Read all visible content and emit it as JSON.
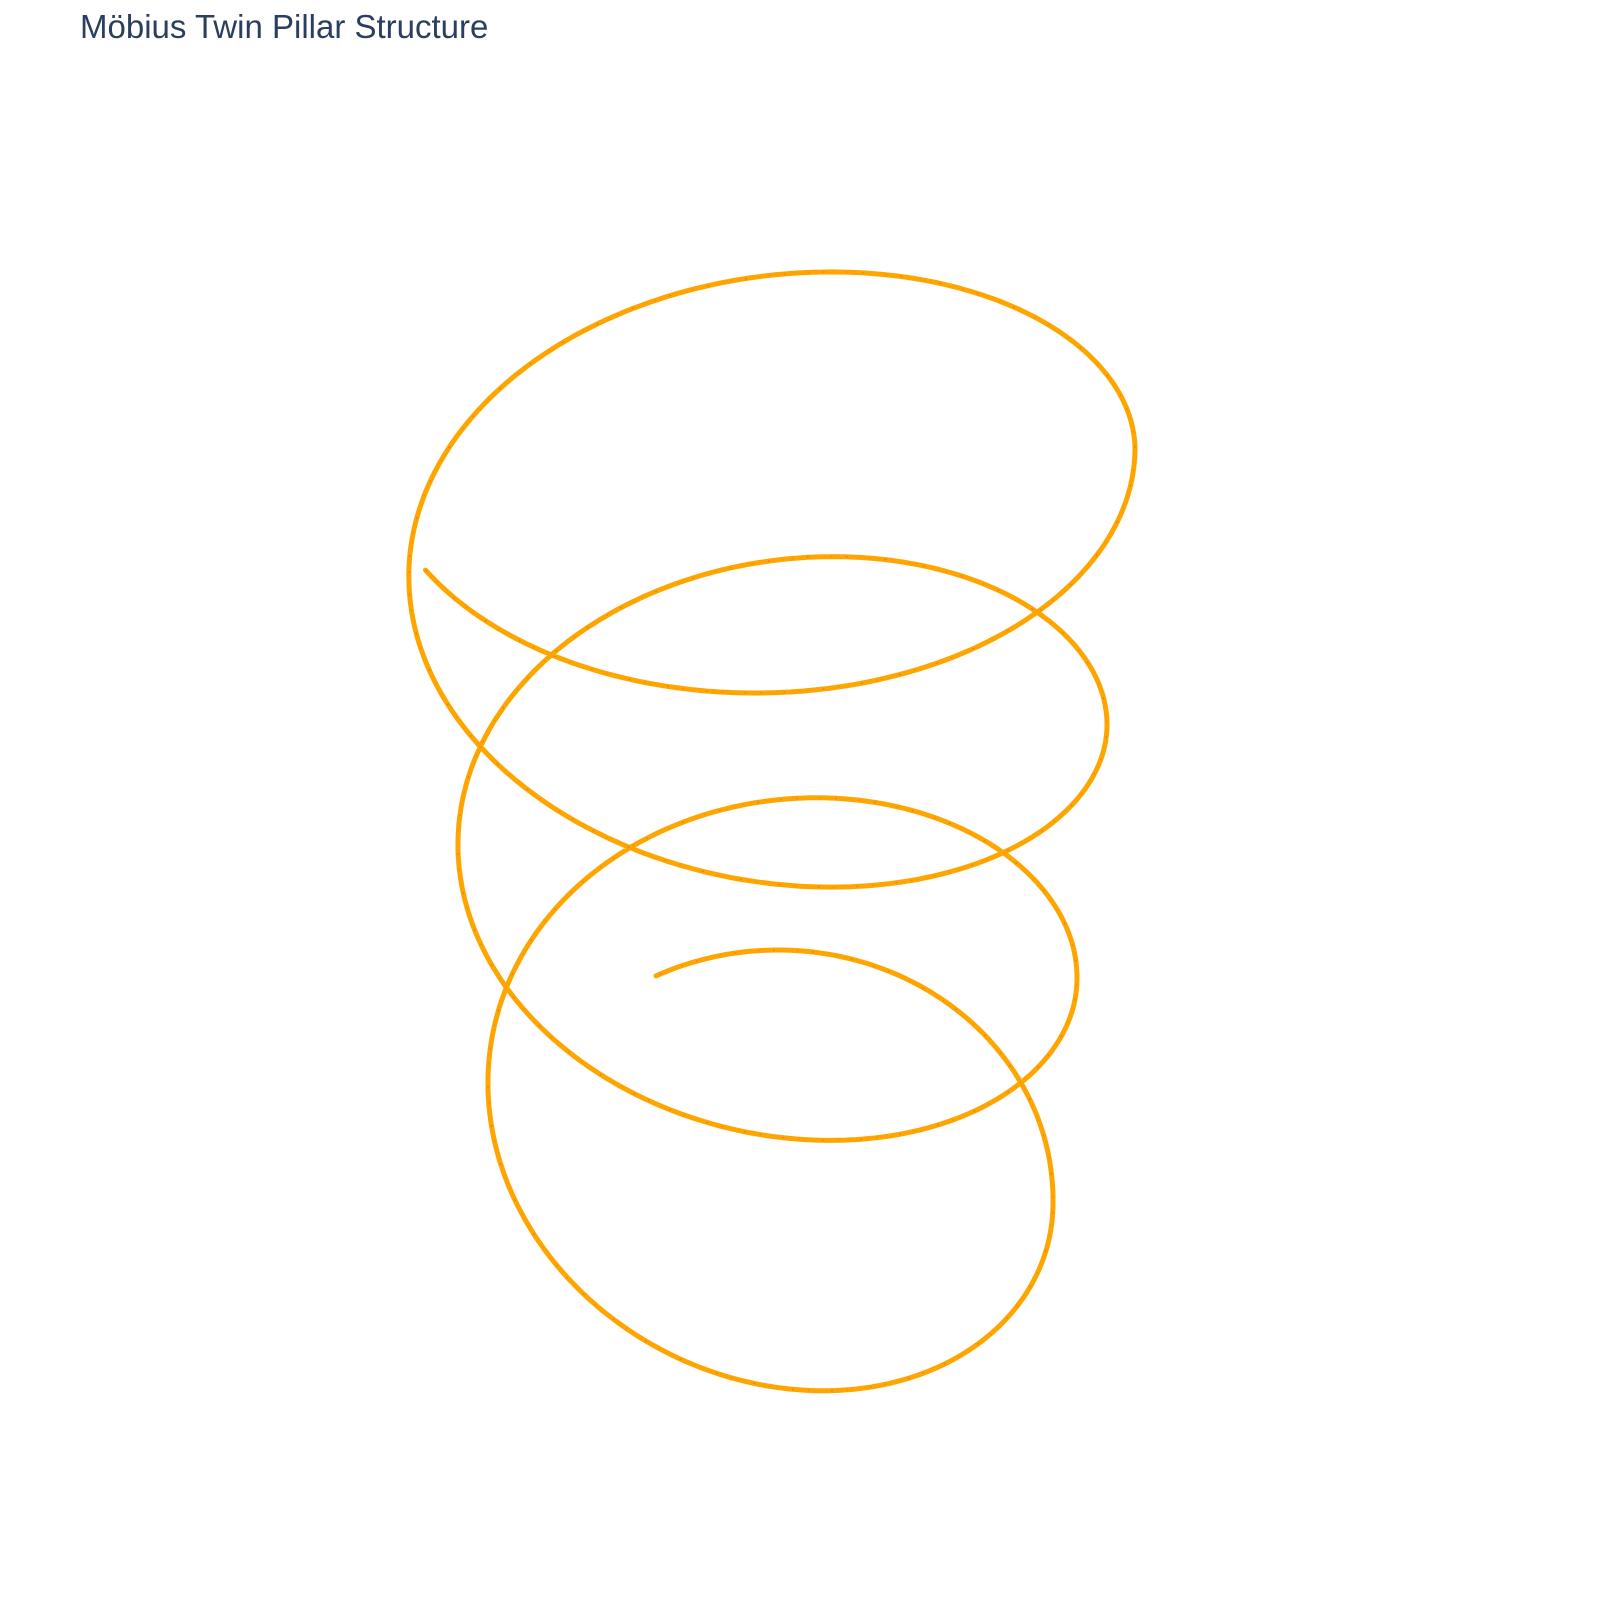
{
  "chart_data": {
    "type": "line3d",
    "title": "Möbius Twin Pillar Structure",
    "projection": "perspective",
    "series": [
      {
        "name": "helix",
        "color": "#ffa500",
        "accent_color": "#5a3fa0",
        "param_range": [
          0,
          23.5
        ],
        "turns": 3.75,
        "x": "radius(t) * cos(t)",
        "y": "radius(t) * sin(t)",
        "z": "decreasing with t",
        "radius_trend": "shrinks toward the bottom"
      }
    ],
    "xaxis": {
      "visible": false
    },
    "yaxis": {
      "visible": false
    },
    "zaxis": {
      "visible": false
    },
    "showlegend": false
  }
}
